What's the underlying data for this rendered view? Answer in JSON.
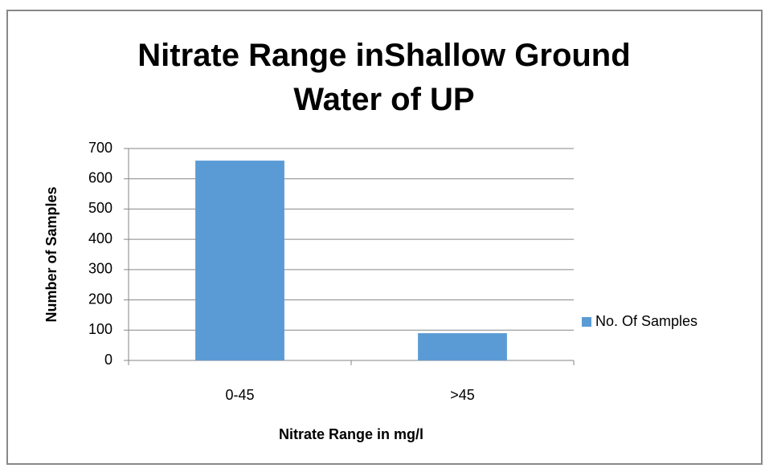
{
  "chart_data": {
    "type": "bar",
    "title": "Nitrate Range inShallow Ground Water of UP",
    "x_label": "Nitrate Range in mg/l",
    "y_label": "Number  of  Samples",
    "categories": [
      "0-45",
      ">45"
    ],
    "series": [
      {
        "name": "No. Of Samples",
        "color": "#5b9bd5",
        "values": [
          660,
          90
        ]
      }
    ],
    "ylim": [
      0,
      700
    ],
    "yticks": [
      0,
      100,
      200,
      300,
      400,
      500,
      600,
      700
    ],
    "grid": true,
    "legend": "right"
  }
}
